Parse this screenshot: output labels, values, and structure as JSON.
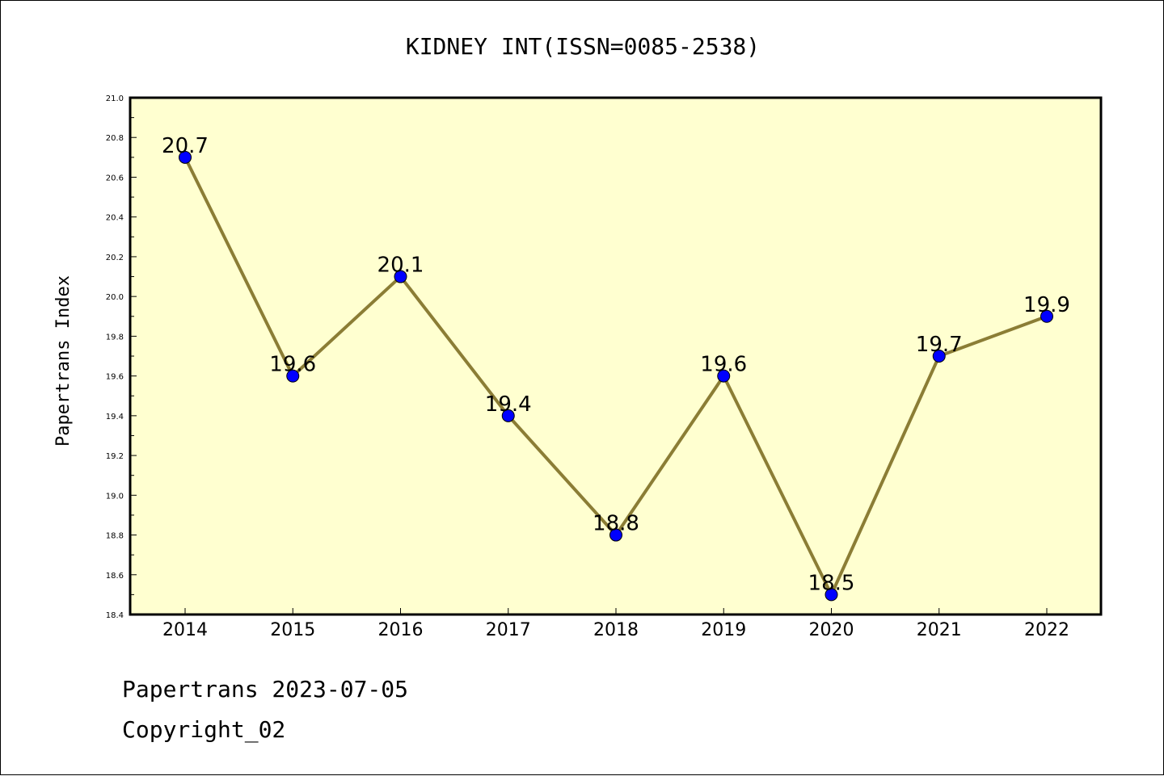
{
  "chart_data": {
    "type": "line",
    "title": "KIDNEY INT(ISSN=0085-2538)",
    "xlabel": "",
    "ylabel": "Papertrans Index",
    "categories": [
      "2014",
      "2015",
      "2016",
      "2017",
      "2018",
      "2019",
      "2020",
      "2021",
      "2022"
    ],
    "values": [
      20.7,
      19.6,
      20.1,
      19.4,
      18.8,
      19.6,
      18.5,
      19.7,
      19.9
    ],
    "data_labels": [
      "20.7",
      "19.6",
      "20.1",
      "19.4",
      "18.8",
      "19.6",
      "18.5",
      "19.7",
      "19.9"
    ],
    "ylim": [
      18.4,
      21.0
    ],
    "yticks": [
      "18.4",
      "18.6",
      "18.8",
      "19.0",
      "19.2",
      "19.4",
      "19.6",
      "19.8",
      "20.0",
      "20.2",
      "20.4",
      "20.6",
      "20.8",
      "21.0"
    ],
    "grid": false,
    "colors": {
      "plot_background": "#ffffd0",
      "line": "#8b7d35",
      "marker": "#0000ff"
    }
  },
  "footer": {
    "line1": "Papertrans 2023-07-05",
    "line2": "Copyright_02"
  }
}
